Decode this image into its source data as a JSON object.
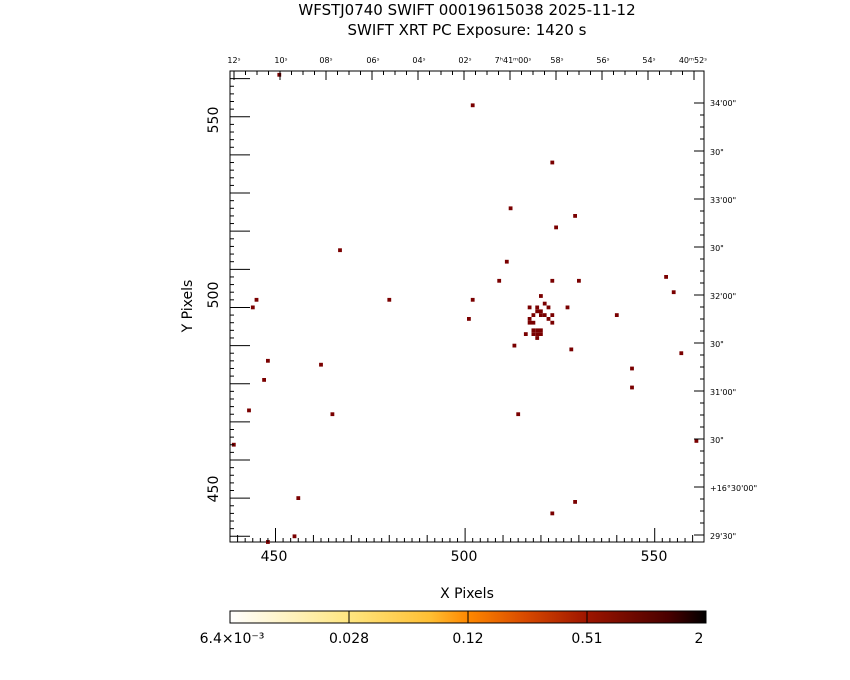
{
  "chart_data": {
    "type": "scatter",
    "title": "WFSTJ0740 SWIFT 00019615038 2025-11-12",
    "subtitle": "SWIFT XRT PC Exposure:       1420 s",
    "xlabel": "X Pixels",
    "ylabel": "Y Pixels",
    "xlim": [
      438,
      563
    ],
    "ylim": [
      438.5,
      562
    ],
    "x_ticks": [
      450,
      500,
      550
    ],
    "y_ticks": [
      450,
      500,
      550
    ],
    "top_ra_labels": [
      "12ˢ",
      "10ˢ",
      "08ˢ",
      "06ˢ",
      "04ˢ",
      "02ˢ",
      "7ʰ41ᵐ00ˢ",
      "58ˢ",
      "56ˢ",
      "54ˢ",
      "40ᵐ52ˢ"
    ],
    "right_dec_labels": [
      "34'00\"",
      "30\"",
      "33'00\"",
      "30\"",
      "32'00\"",
      "30\"",
      "31'00\"",
      "30\"",
      "+16°30'00\"",
      "29'30\""
    ],
    "colorbar": {
      "labels": [
        "6.4×10⁻³",
        "0.028",
        "0.12",
        "0.51",
        "2"
      ]
    },
    "marker_color": "#7a0000",
    "points": [
      [
        451,
        561
      ],
      [
        502,
        553
      ],
      [
        523,
        538
      ],
      [
        512,
        526
      ],
      [
        529,
        524
      ],
      [
        524,
        521
      ],
      [
        467,
        515
      ],
      [
        511,
        512
      ],
      [
        509,
        507
      ],
      [
        523,
        507
      ],
      [
        530,
        507
      ],
      [
        553,
        508
      ],
      [
        555,
        504
      ],
      [
        445,
        502
      ],
      [
        480,
        502
      ],
      [
        502,
        502
      ],
      [
        444,
        500
      ],
      [
        527,
        500
      ],
      [
        540,
        498
      ],
      [
        501,
        497
      ],
      [
        523,
        496
      ],
      [
        557,
        488
      ],
      [
        513,
        490
      ],
      [
        528,
        489
      ],
      [
        448,
        486
      ],
      [
        462,
        485
      ],
      [
        544,
        484
      ],
      [
        447,
        481
      ],
      [
        544,
        479
      ],
      [
        443,
        473
      ],
      [
        465,
        472
      ],
      [
        514,
        472
      ],
      [
        439,
        464
      ],
      [
        561,
        465
      ],
      [
        456,
        450
      ],
      [
        529,
        449
      ],
      [
        523,
        446
      ],
      [
        455,
        440
      ],
      [
        448,
        438.5
      ],
      [
        520,
        503
      ],
      [
        521,
        501
      ],
      [
        519,
        500
      ],
      [
        522,
        500
      ],
      [
        520,
        499
      ],
      [
        519,
        499
      ],
      [
        518,
        498
      ],
      [
        520,
        498
      ],
      [
        521,
        498
      ],
      [
        523,
        498
      ],
      [
        517,
        497
      ],
      [
        522,
        497
      ],
      [
        517,
        496
      ],
      [
        518,
        496
      ],
      [
        518,
        494
      ],
      [
        519,
        494
      ],
      [
        520,
        494
      ],
      [
        516,
        493
      ],
      [
        518,
        493
      ],
      [
        519,
        493
      ],
      [
        520,
        493
      ],
      [
        519,
        492
      ],
      [
        517,
        500
      ]
    ]
  }
}
